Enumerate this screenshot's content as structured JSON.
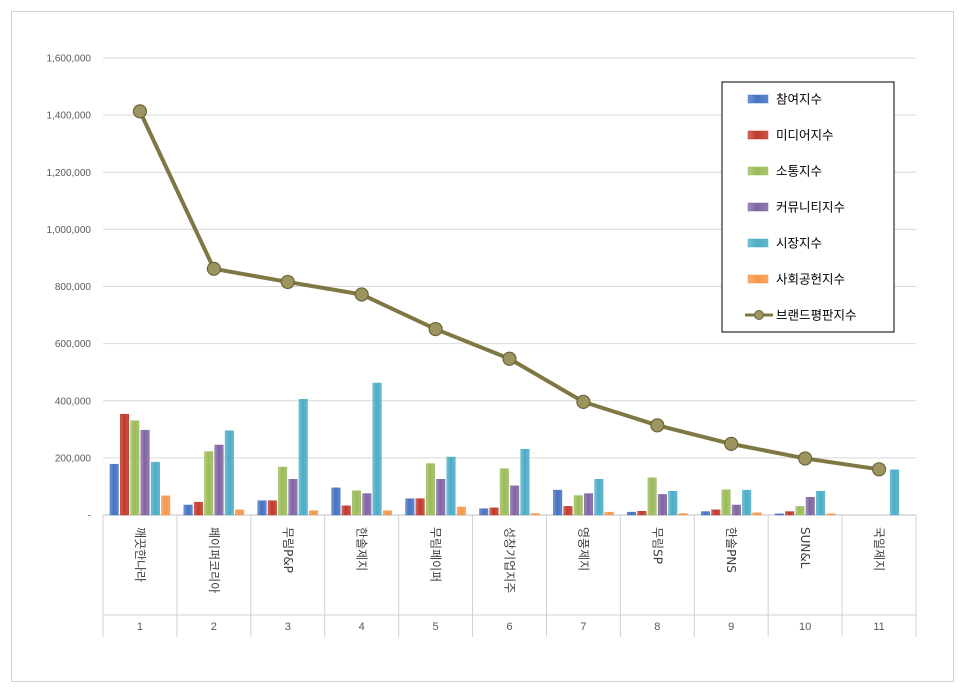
{
  "chart_data": {
    "type": "bar",
    "categories": [
      "깨끗한나라",
      "페이퍼코리아",
      "무림P&P",
      "한솔제지",
      "무림페이퍼",
      "성창기업지주",
      "영풍제지",
      "무림SP",
      "한솔PNS",
      "SUN&L",
      "국일제지"
    ],
    "ranks": [
      "1",
      "2",
      "3",
      "4",
      "5",
      "6",
      "7",
      "8",
      "9",
      "10",
      "11"
    ],
    "y_ticks": [
      "-",
      "200,000",
      "400,000",
      "600,000",
      "800,000",
      "1,000,000",
      "1,200,000",
      "1,400,000",
      "1,600,000"
    ],
    "ylim": [
      0,
      1600000
    ],
    "grid": true,
    "legend_position": "top-right",
    "series": [
      {
        "name": "참여지수",
        "kind": "bar",
        "color": "#4472C4",
        "values": [
          178000,
          35000,
          50000,
          95000,
          57000,
          22000,
          87000,
          10000,
          12000,
          4000,
          0
        ]
      },
      {
        "name": "미디어지수",
        "kind": "bar",
        "color": "#C0392B",
        "values": [
          353000,
          45000,
          50000,
          32000,
          57000,
          25000,
          30000,
          13000,
          18000,
          12000,
          0
        ]
      },
      {
        "name": "소통지수",
        "kind": "bar",
        "color": "#9BBB59",
        "values": [
          330000,
          222000,
          168000,
          85000,
          180000,
          162000,
          68000,
          130000,
          88000,
          30000,
          0
        ]
      },
      {
        "name": "커뮤니티지수",
        "kind": "bar",
        "color": "#8064A2",
        "values": [
          297000,
          245000,
          125000,
          75000,
          125000,
          102000,
          75000,
          72000,
          35000,
          62000,
          0
        ]
      },
      {
        "name": "시장지수",
        "kind": "bar",
        "color": "#4BACC6",
        "values": [
          185000,
          295000,
          405000,
          462000,
          203000,
          230000,
          125000,
          83000,
          87000,
          83000,
          158000
        ]
      },
      {
        "name": "사회공헌지수",
        "kind": "bar",
        "color": "#F79646",
        "values": [
          67000,
          18000,
          15000,
          15000,
          28000,
          5000,
          10000,
          5000,
          8000,
          4000,
          0
        ]
      },
      {
        "name": "브랜드평판지수",
        "kind": "line",
        "color": "#7F7744",
        "values": [
          1413000,
          862000,
          816000,
          772000,
          651000,
          547000,
          396000,
          314000,
          249000,
          198000,
          160000
        ]
      }
    ]
  }
}
